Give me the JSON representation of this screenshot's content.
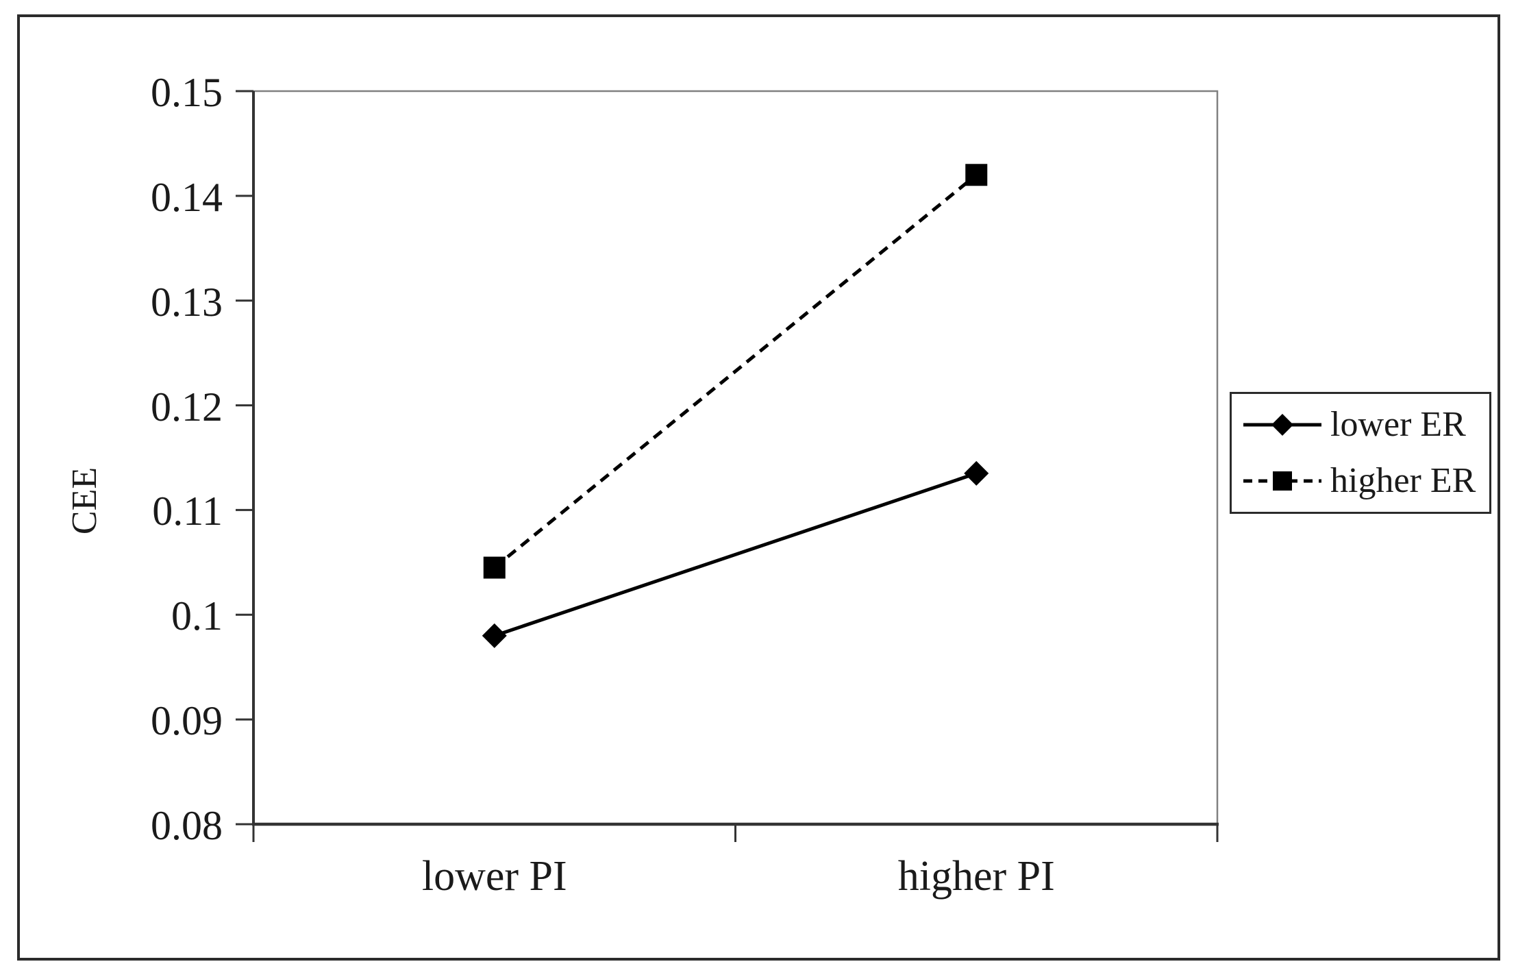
{
  "chart_data": {
    "type": "line",
    "title": "",
    "categories": [
      "lower PI",
      "higher PI"
    ],
    "series": [
      {
        "name": "lower ER",
        "values": [
          0.098,
          0.1135
        ],
        "line_style": "solid",
        "marker": "diamond",
        "color": "#000000"
      },
      {
        "name": "higher ER",
        "values": [
          0.1045,
          0.142
        ],
        "line_style": "dashed",
        "marker": "square",
        "color": "#000000"
      }
    ],
    "xlabel": "",
    "ylabel": "CEE",
    "ylim": [
      0.08,
      0.15
    ],
    "y_tick_labels": [
      "0.15",
      "0.14",
      "0.13",
      "0.12",
      "0.11",
      "0.1",
      "0.09",
      "0.08"
    ],
    "grid": false,
    "legend_position": "right",
    "axis_color": "#333333",
    "plot_border_color": "#808080",
    "text_color": "#1a1a1a",
    "background_color": "#ffffff"
  }
}
